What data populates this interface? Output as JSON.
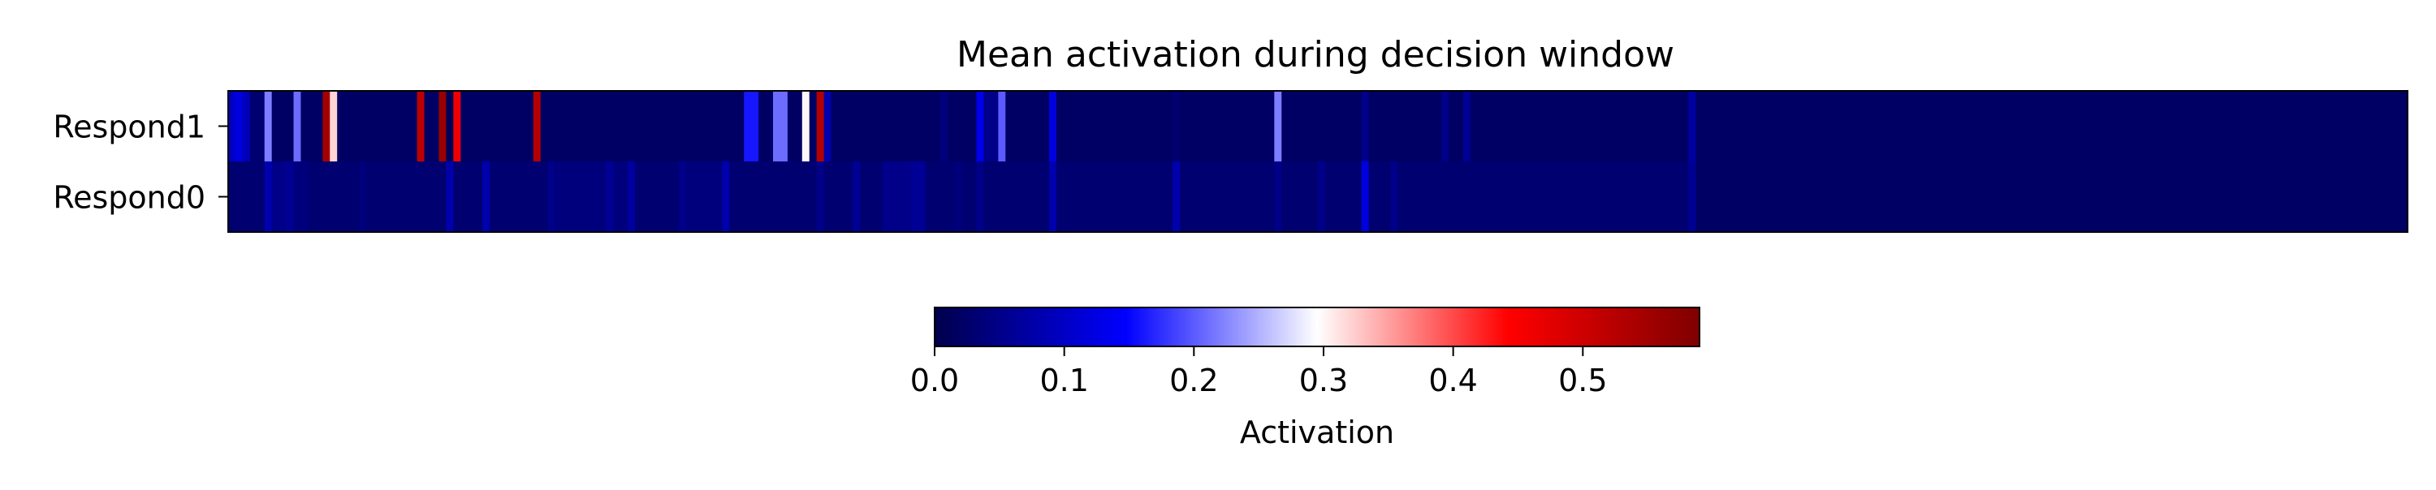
{
  "chart_data": {
    "type": "heatmap",
    "title": "Mean activation during decision window",
    "rows": [
      "Respond1",
      "Respond0"
    ],
    "n_columns": 300,
    "xlabel": "",
    "ylabel": "",
    "vmin": 0.0,
    "vmax": 0.59,
    "background_value": 0.0,
    "colormap": "seismic",
    "colorbar": {
      "label": "Activation",
      "ticks": [
        0.0,
        0.1,
        0.2,
        0.3,
        0.4,
        0.5
      ],
      "tick_labels": [
        "0.0",
        "0.1",
        "0.2",
        "0.3",
        "0.4",
        "0.5"
      ],
      "orientation": "horizontal",
      "placement": "bottom"
    },
    "row_cells": {
      "Respond1": [
        [
          0,
          1,
          0.1
        ],
        [
          1,
          2,
          0.12
        ],
        [
          2,
          3,
          0.09
        ],
        [
          3,
          5,
          0.03
        ],
        [
          5,
          6,
          0.22
        ],
        [
          6,
          9,
          0.02
        ],
        [
          9,
          10,
          0.21
        ],
        [
          10,
          13,
          0.02
        ],
        [
          13,
          14,
          0.55
        ],
        [
          14,
          15,
          0.32
        ],
        [
          15,
          26,
          0.02
        ],
        [
          26,
          27,
          0.52
        ],
        [
          27,
          29,
          0.02
        ],
        [
          29,
          30,
          0.56
        ],
        [
          30,
          31,
          0.01
        ],
        [
          31,
          32,
          0.46
        ],
        [
          32,
          42,
          0.02
        ],
        [
          42,
          43,
          0.53
        ],
        [
          43,
          71,
          0.02
        ],
        [
          71,
          73,
          0.16
        ],
        [
          73,
          75,
          0.02
        ],
        [
          75,
          77,
          0.21
        ],
        [
          77,
          79,
          0.02
        ],
        [
          79,
          80,
          0.3
        ],
        [
          80,
          81,
          0.02
        ],
        [
          81,
          82,
          0.53
        ],
        [
          82,
          83,
          0.08
        ],
        [
          83,
          98,
          0.02
        ],
        [
          98,
          99,
          0.04
        ],
        [
          99,
          103,
          0.02
        ],
        [
          103,
          104,
          0.13
        ],
        [
          104,
          106,
          0.05
        ],
        [
          106,
          107,
          0.2
        ],
        [
          107,
          113,
          0.02
        ],
        [
          113,
          114,
          0.12
        ],
        [
          114,
          130,
          0.02
        ],
        [
          130,
          131,
          0.03
        ],
        [
          131,
          144,
          0.02
        ],
        [
          144,
          145,
          0.22
        ],
        [
          145,
          156,
          0.02
        ],
        [
          156,
          157,
          0.05
        ],
        [
          157,
          167,
          0.02
        ],
        [
          167,
          168,
          0.05
        ],
        [
          168,
          170,
          0.02
        ],
        [
          170,
          171,
          0.06
        ],
        [
          171,
          201,
          0.02
        ],
        [
          201,
          202,
          0.07
        ],
        [
          202,
          300,
          0.02
        ]
      ],
      "Respond0": [
        [
          0,
          5,
          0.03
        ],
        [
          5,
          6,
          0.08
        ],
        [
          6,
          8,
          0.05
        ],
        [
          8,
          9,
          0.06
        ],
        [
          9,
          11,
          0.04
        ],
        [
          11,
          18,
          0.03
        ],
        [
          18,
          19,
          0.04
        ],
        [
          19,
          30,
          0.03
        ],
        [
          30,
          31,
          0.08
        ],
        [
          31,
          35,
          0.03
        ],
        [
          35,
          36,
          0.08
        ],
        [
          36,
          44,
          0.03
        ],
        [
          44,
          45,
          0.05
        ],
        [
          45,
          52,
          0.04
        ],
        [
          52,
          53,
          0.06
        ],
        [
          53,
          55,
          0.04
        ],
        [
          55,
          56,
          0.07
        ],
        [
          56,
          62,
          0.03
        ],
        [
          62,
          63,
          0.05
        ],
        [
          63,
          68,
          0.04
        ],
        [
          68,
          69,
          0.08
        ],
        [
          69,
          81,
          0.03
        ],
        [
          81,
          82,
          0.05
        ],
        [
          82,
          86,
          0.03
        ],
        [
          86,
          87,
          0.06
        ],
        [
          87,
          90,
          0.03
        ],
        [
          90,
          94,
          0.05
        ],
        [
          94,
          96,
          0.06
        ],
        [
          96,
          100,
          0.03
        ],
        [
          100,
          101,
          0.04
        ],
        [
          101,
          103,
          0.03
        ],
        [
          103,
          104,
          0.05
        ],
        [
          104,
          113,
          0.03
        ],
        [
          113,
          114,
          0.08
        ],
        [
          114,
          130,
          0.03
        ],
        [
          130,
          131,
          0.08
        ],
        [
          131,
          144,
          0.03
        ],
        [
          144,
          145,
          0.05
        ],
        [
          145,
          150,
          0.03
        ],
        [
          150,
          151,
          0.05
        ],
        [
          151,
          156,
          0.03
        ],
        [
          156,
          157,
          0.12
        ],
        [
          157,
          160,
          0.03
        ],
        [
          160,
          161,
          0.05
        ],
        [
          161,
          201,
          0.03
        ],
        [
          201,
          202,
          0.06
        ],
        [
          202,
          300,
          0.02
        ]
      ]
    }
  }
}
